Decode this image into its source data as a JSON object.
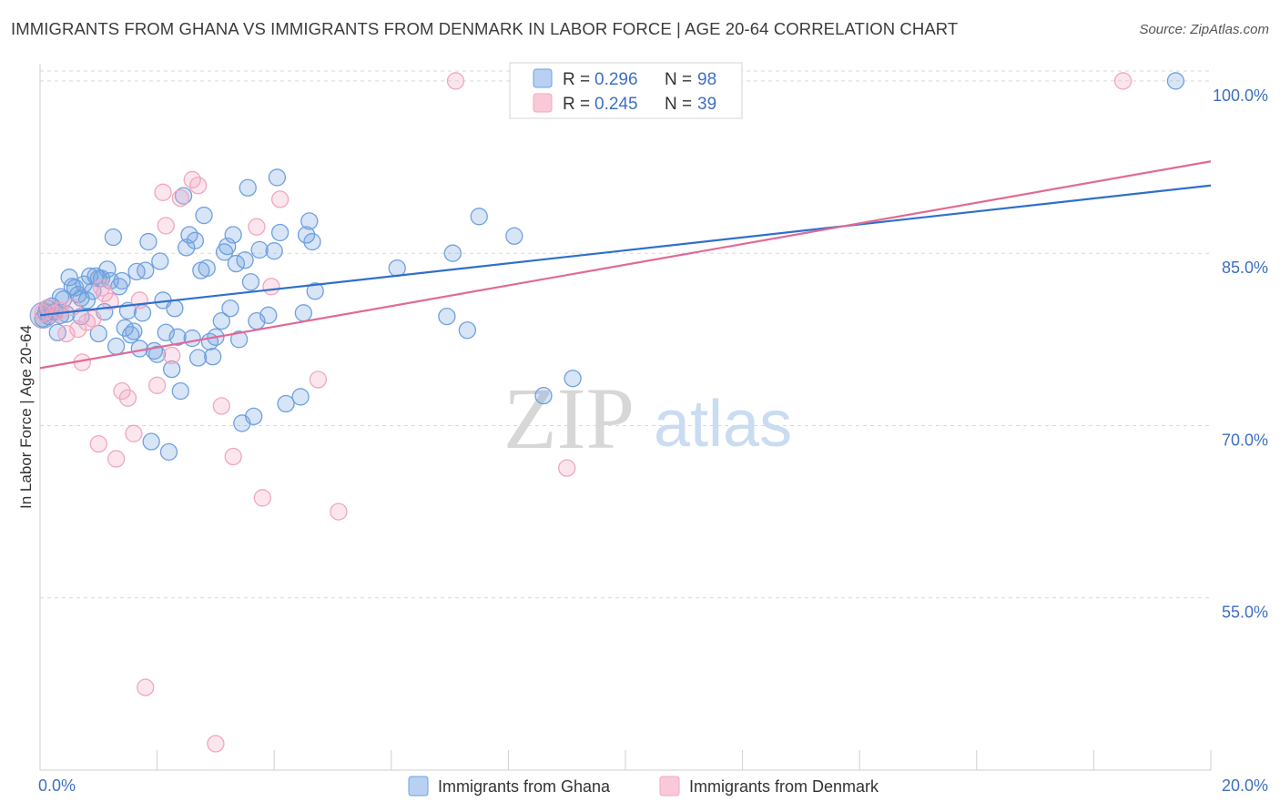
{
  "title": "IMMIGRANTS FROM GHANA VS IMMIGRANTS FROM DENMARK IN LABOR FORCE | AGE 20-64 CORRELATION CHART",
  "source": "Source: ZipAtlas.com",
  "watermark": {
    "zip": "ZIP",
    "atlas": "atlas"
  },
  "colors": {
    "ghana": "#6fa0e0",
    "ghana_line": "#2f6fcc",
    "denmark": "#f2a6bf",
    "denmark_line": "#e06a96",
    "tick_text": "#3d6fc4"
  },
  "legend": {
    "rows": [
      {
        "r_label": "R = ",
        "r_value": "0.296",
        "n_label": "N = ",
        "n_value": "98"
      },
      {
        "r_label": "R = ",
        "r_value": "0.245",
        "n_label": "N = ",
        "n_value": "39"
      }
    ]
  },
  "chart_data": {
    "type": "scatter",
    "xlabel": "",
    "ylabel": "In Labor Force | Age 20-64",
    "xlim": [
      0,
      20
    ],
    "ylim": [
      40,
      101.5
    ],
    "x_tick_labels": [
      "0.0%",
      "20.0%"
    ],
    "y_ticks": [
      55,
      70,
      85,
      100
    ],
    "y_tick_labels": [
      "55.0%",
      "70.0%",
      "85.0%",
      "100.0%"
    ],
    "grid": true,
    "legend_position": "top-center",
    "series": [
      {
        "name": "Immigrants from Ghana",
        "trend": {
          "x0": 0,
          "y0": 79.6,
          "x1": 20,
          "y1": 90.9
        },
        "points": [
          [
            0.05,
            79.3
          ],
          [
            0.1,
            79.8
          ],
          [
            0.12,
            80.2
          ],
          [
            0.15,
            79.5
          ],
          [
            0.2,
            80.4
          ],
          [
            0.25,
            79.9
          ],
          [
            0.3,
            78.1
          ],
          [
            0.35,
            81.2
          ],
          [
            0.4,
            81.0
          ],
          [
            0.45,
            79.7
          ],
          [
            0.5,
            82.9
          ],
          [
            0.55,
            82.1
          ],
          [
            0.6,
            82.0
          ],
          [
            0.65,
            81.4
          ],
          [
            0.7,
            81.1
          ],
          [
            0.75,
            82.3
          ],
          [
            0.8,
            80.9
          ],
          [
            0.85,
            83.0
          ],
          [
            0.9,
            81.7
          ],
          [
            0.95,
            83.0
          ],
          [
            1.0,
            78.0
          ],
          [
            1.05,
            82.8
          ],
          [
            1.1,
            79.9
          ],
          [
            1.15,
            83.6
          ],
          [
            1.2,
            82.6
          ],
          [
            1.25,
            86.4
          ],
          [
            1.3,
            76.9
          ],
          [
            1.35,
            82.1
          ],
          [
            1.4,
            82.6
          ],
          [
            1.45,
            78.5
          ],
          [
            1.5,
            80.0
          ],
          [
            1.55,
            77.9
          ],
          [
            1.6,
            78.2
          ],
          [
            1.65,
            83.4
          ],
          [
            1.7,
            76.7
          ],
          [
            1.75,
            79.8
          ],
          [
            1.8,
            83.5
          ],
          [
            1.85,
            86.0
          ],
          [
            1.9,
            68.6
          ],
          [
            1.95,
            76.5
          ],
          [
            2.0,
            76.2
          ],
          [
            2.05,
            84.3
          ],
          [
            2.1,
            80.9
          ],
          [
            2.15,
            78.1
          ],
          [
            2.2,
            67.7
          ],
          [
            2.25,
            74.9
          ],
          [
            2.3,
            80.2
          ],
          [
            2.35,
            77.7
          ],
          [
            2.4,
            73.0
          ],
          [
            2.45,
            90.0
          ],
          [
            2.5,
            85.5
          ],
          [
            2.55,
            86.6
          ],
          [
            2.6,
            77.6
          ],
          [
            2.65,
            86.1
          ],
          [
            2.7,
            75.9
          ],
          [
            2.75,
            83.5
          ],
          [
            2.8,
            88.3
          ],
          [
            2.85,
            83.7
          ],
          [
            2.9,
            77.3
          ],
          [
            2.95,
            76.0
          ],
          [
            3.0,
            77.7
          ],
          [
            3.1,
            79.1
          ],
          [
            3.15,
            85.1
          ],
          [
            3.2,
            85.6
          ],
          [
            3.25,
            80.2
          ],
          [
            3.3,
            86.6
          ],
          [
            3.35,
            84.1
          ],
          [
            3.4,
            77.5
          ],
          [
            3.45,
            70.2
          ],
          [
            3.5,
            84.4
          ],
          [
            3.55,
            90.7
          ],
          [
            3.6,
            82.5
          ],
          [
            3.65,
            70.8
          ],
          [
            3.7,
            79.1
          ],
          [
            3.75,
            85.3
          ],
          [
            3.9,
            79.6
          ],
          [
            4.0,
            85.2
          ],
          [
            4.05,
            91.6
          ],
          [
            4.1,
            86.8
          ],
          [
            4.2,
            71.9
          ],
          [
            4.45,
            72.5
          ],
          [
            4.5,
            79.8
          ],
          [
            4.55,
            86.6
          ],
          [
            4.6,
            87.8
          ],
          [
            4.65,
            86.0
          ],
          [
            4.7,
            81.7
          ],
          [
            6.1,
            83.7
          ],
          [
            6.95,
            79.5
          ],
          [
            7.05,
            85.0
          ],
          [
            7.3,
            78.3
          ],
          [
            7.5,
            88.2
          ],
          [
            8.1,
            86.5
          ],
          [
            8.6,
            72.6
          ],
          [
            9.1,
            74.1
          ],
          [
            19.4,
            100.0
          ],
          [
            1.0,
            82.8
          ],
          [
            0.7,
            79.5
          ],
          [
            0.35,
            79.6
          ]
        ]
      },
      {
        "name": "Immigrants from Denmark",
        "trend": {
          "x0": 0,
          "y0": 75.0,
          "x1": 20,
          "y1": 93.0
        },
        "points": [
          [
            0.05,
            79.8
          ],
          [
            0.15,
            80.3
          ],
          [
            0.25,
            79.7
          ],
          [
            0.35,
            80.0
          ],
          [
            0.45,
            78.0
          ],
          [
            0.55,
            80.3
          ],
          [
            0.65,
            78.4
          ],
          [
            0.72,
            75.5
          ],
          [
            0.8,
            79.0
          ],
          [
            0.9,
            79.3
          ],
          [
            1.0,
            68.4
          ],
          [
            1.05,
            82.0
          ],
          [
            1.1,
            81.5
          ],
          [
            1.2,
            80.8
          ],
          [
            1.3,
            67.1
          ],
          [
            1.4,
            73.0
          ],
          [
            1.5,
            72.4
          ],
          [
            1.6,
            69.3
          ],
          [
            1.7,
            80.9
          ],
          [
            1.8,
            47.2
          ],
          [
            2.0,
            73.5
          ],
          [
            2.1,
            90.3
          ],
          [
            2.15,
            87.4
          ],
          [
            2.25,
            76.1
          ],
          [
            2.4,
            89.8
          ],
          [
            2.6,
            91.4
          ],
          [
            2.7,
            90.9
          ],
          [
            3.0,
            42.3
          ],
          [
            3.1,
            71.7
          ],
          [
            3.3,
            67.3
          ],
          [
            3.7,
            87.3
          ],
          [
            3.8,
            63.7
          ],
          [
            3.95,
            82.1
          ],
          [
            4.1,
            89.7
          ],
          [
            4.75,
            74.0
          ],
          [
            5.1,
            62.5
          ],
          [
            7.1,
            100.0
          ],
          [
            9.0,
            66.3
          ],
          [
            18.5,
            100.0
          ]
        ]
      }
    ]
  }
}
